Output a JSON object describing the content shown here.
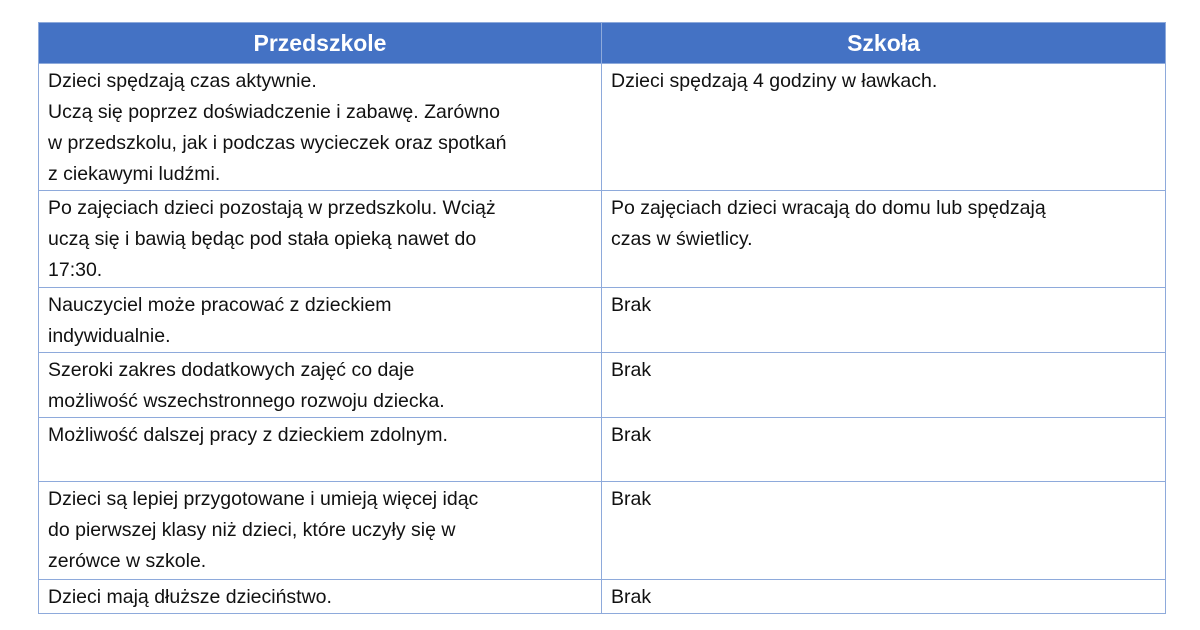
{
  "table": {
    "headers": [
      "Przedszkole",
      "Szkoła"
    ],
    "header_color": "#4472C4",
    "rows": [
      [
        "Dzieci spędzają czas aktywnie.\nUczą się poprzez doświadczenie i zabawę. Zarówno\nw przedszkolu, jak i podczas wycieczek oraz spotkań\nz ciekawymi ludźmi.",
        "Dzieci spędzają 4 godziny w ławkach."
      ],
      [
        "Po zajęciach dzieci pozostają w przedszkolu. Wciąż\nuczą się i bawią będąc pod stała opieką nawet do\n17:30.",
        "Po zajęciach dzieci wracają do domu lub spędzają\nczas w świetlicy."
      ],
      [
        "Nauczyciel może pracować z dzieckiem\nindywidualnie.",
        "Brak"
      ],
      [
        "Szeroki zakres dodatkowych zajęć co daje\nmożliwość wszechstronnego rozwoju dziecka.",
        "Brak"
      ],
      [
        "Możliwość dalszej pracy z dzieckiem zdolnym.",
        "Brak"
      ],
      [
        "Dzieci są lepiej przygotowane i umieją więcej idąc\ndo pierwszej klasy niż dzieci, które uczyły się w\nzerówce w szkole.",
        "Brak"
      ],
      [
        "Dzieci mają dłuższe dzieciństwo.",
        "Brak"
      ]
    ]
  }
}
